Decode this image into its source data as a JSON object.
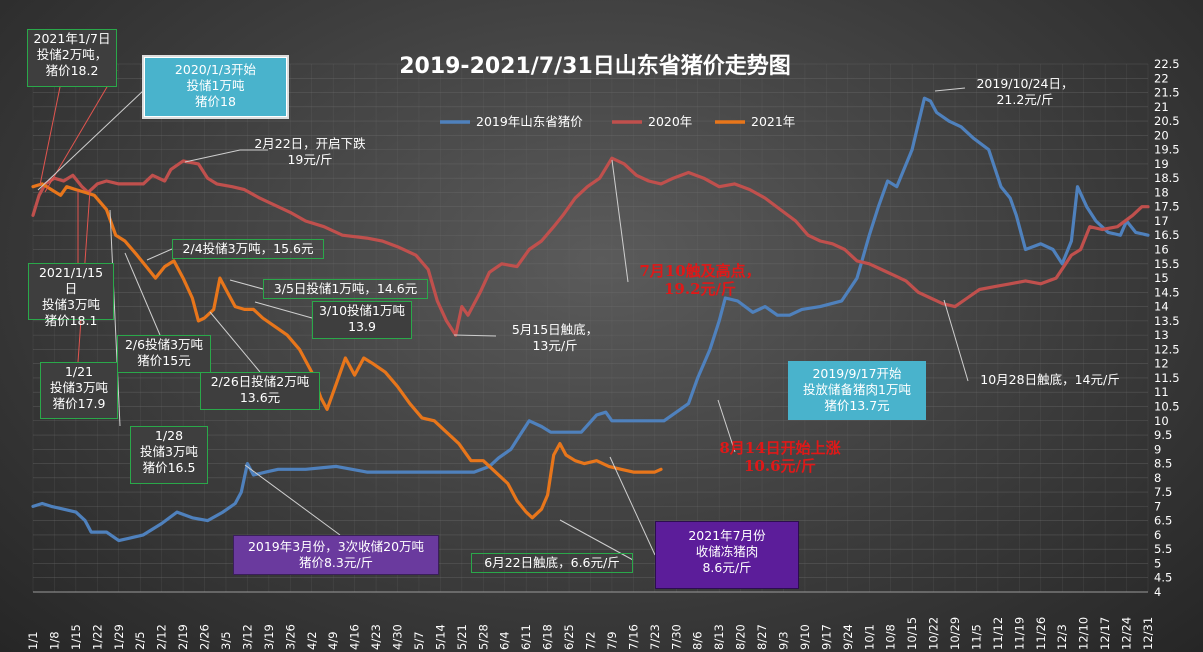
{
  "chart_data": {
    "type": "line",
    "title": "2019-2021/7/31日山东省猪价走势图",
    "ylim": [
      4,
      22.5
    ],
    "ytick_step": 0.5,
    "grid": true,
    "legend_position": "top",
    "x_ticks": [
      "1/1",
      "1/8",
      "1/15",
      "1/22",
      "1/29",
      "2/5",
      "2/12",
      "2/19",
      "2/26",
      "3/5",
      "3/12",
      "3/19",
      "3/26",
      "4/2",
      "4/9",
      "4/16",
      "4/23",
      "4/30",
      "5/7",
      "5/14",
      "5/21",
      "5/28",
      "6/4",
      "6/11",
      "6/18",
      "6/25",
      "7/2",
      "7/9",
      "7/16",
      "7/23",
      "7/30",
      "8/6",
      "8/13",
      "8/20",
      "8/27",
      "9/3",
      "9/10",
      "9/17",
      "9/24",
      "10/1",
      "10/8",
      "10/15",
      "10/22",
      "10/29",
      "11/5",
      "11/12",
      "11/19",
      "11/26",
      "12/3",
      "12/10",
      "12/17",
      "12/24",
      "12/31"
    ],
    "series": [
      {
        "name": "2019年山东省猪价",
        "color": "#4f81bd",
        "points": [
          [
            1,
            7.0
          ],
          [
            4,
            7.1
          ],
          [
            7,
            7.0
          ],
          [
            11,
            6.9
          ],
          [
            15,
            6.8
          ],
          [
            18,
            6.5
          ],
          [
            20,
            6.1
          ],
          [
            25,
            6.1
          ],
          [
            29,
            5.8
          ],
          [
            33,
            5.9
          ],
          [
            37,
            6.0
          ],
          [
            43,
            6.4
          ],
          [
            48,
            6.8
          ],
          [
            53,
            6.6
          ],
          [
            58,
            6.5
          ],
          [
            63,
            6.8
          ],
          [
            67,
            7.1
          ],
          [
            69,
            7.5
          ],
          [
            71,
            8.5
          ],
          [
            73,
            8.1
          ],
          [
            77,
            8.2
          ],
          [
            81,
            8.3
          ],
          [
            90,
            8.3
          ],
          [
            100,
            8.4
          ],
          [
            110,
            8.2
          ],
          [
            125,
            8.2
          ],
          [
            135,
            8.2
          ],
          [
            145,
            8.2
          ],
          [
            150,
            8.4
          ],
          [
            153,
            8.7
          ],
          [
            157,
            9.0
          ],
          [
            160,
            9.5
          ],
          [
            163,
            10.0
          ],
          [
            167,
            9.8
          ],
          [
            170,
            9.6
          ],
          [
            180,
            9.6
          ],
          [
            185,
            10.2
          ],
          [
            188,
            10.3
          ],
          [
            190,
            10.0
          ],
          [
            200,
            10.0
          ],
          [
            207,
            10.0
          ],
          [
            211,
            10.3
          ],
          [
            215,
            10.6
          ],
          [
            218,
            11.5
          ],
          [
            222,
            12.5
          ],
          [
            225,
            13.5
          ],
          [
            227,
            14.3
          ],
          [
            231,
            14.2
          ],
          [
            236,
            13.8
          ],
          [
            240,
            14.0
          ],
          [
            244,
            13.7
          ],
          [
            248,
            13.7
          ],
          [
            252,
            13.9
          ],
          [
            258,
            14.0
          ],
          [
            265,
            14.2
          ],
          [
            270,
            15.0
          ],
          [
            274,
            16.5
          ],
          [
            277,
            17.5
          ],
          [
            280,
            18.4
          ],
          [
            283,
            18.2
          ],
          [
            288,
            19.5
          ],
          [
            292,
            21.3
          ],
          [
            294,
            21.2
          ],
          [
            296,
            20.8
          ],
          [
            300,
            20.5
          ],
          [
            304,
            20.3
          ],
          [
            308,
            19.9
          ],
          [
            313,
            19.5
          ],
          [
            317,
            18.2
          ],
          [
            320,
            17.8
          ],
          [
            322,
            17.2
          ],
          [
            325,
            16.0
          ],
          [
            330,
            16.2
          ],
          [
            334,
            16.0
          ],
          [
            337,
            15.5
          ],
          [
            340,
            16.3
          ],
          [
            342,
            18.2
          ],
          [
            345,
            17.5
          ],
          [
            348,
            17.0
          ],
          [
            352,
            16.6
          ],
          [
            356,
            16.5
          ],
          [
            358,
            17.0
          ],
          [
            361,
            16.6
          ],
          [
            365,
            16.5
          ]
        ]
      },
      {
        "name": "2020年",
        "color": "#c0504d",
        "points": [
          [
            1,
            17.2
          ],
          [
            3,
            17.9
          ],
          [
            5,
            18.3
          ],
          [
            8,
            18.5
          ],
          [
            11,
            18.4
          ],
          [
            14,
            18.6
          ],
          [
            17,
            18.2
          ],
          [
            19,
            18.0
          ],
          [
            22,
            18.3
          ],
          [
            25,
            18.4
          ],
          [
            29,
            18.3
          ],
          [
            33,
            18.3
          ],
          [
            37,
            18.3
          ],
          [
            40,
            18.6
          ],
          [
            44,
            18.4
          ],
          [
            46,
            18.8
          ],
          [
            50,
            19.1
          ],
          [
            55,
            19.0
          ],
          [
            58,
            18.5
          ],
          [
            61,
            18.3
          ],
          [
            66,
            18.2
          ],
          [
            70,
            18.1
          ],
          [
            75,
            17.8
          ],
          [
            79,
            17.6
          ],
          [
            85,
            17.3
          ],
          [
            90,
            17.0
          ],
          [
            96,
            16.8
          ],
          [
            102,
            16.5
          ],
          [
            110,
            16.4
          ],
          [
            115,
            16.3
          ],
          [
            120,
            16.1
          ],
          [
            126,
            15.8
          ],
          [
            130,
            15.3
          ],
          [
            133,
            14.2
          ],
          [
            136,
            13.5
          ],
          [
            139,
            13.0
          ],
          [
            141,
            14.0
          ],
          [
            143,
            13.7
          ],
          [
            147,
            14.5
          ],
          [
            150,
            15.2
          ],
          [
            154,
            15.5
          ],
          [
            159,
            15.4
          ],
          [
            163,
            16.0
          ],
          [
            167,
            16.3
          ],
          [
            171,
            16.8
          ],
          [
            174,
            17.2
          ],
          [
            178,
            17.8
          ],
          [
            182,
            18.2
          ],
          [
            186,
            18.5
          ],
          [
            190,
            19.2
          ],
          [
            194,
            19.0
          ],
          [
            198,
            18.6
          ],
          [
            202,
            18.4
          ],
          [
            206,
            18.3
          ],
          [
            210,
            18.5
          ],
          [
            215,
            18.7
          ],
          [
            220,
            18.5
          ],
          [
            225,
            18.2
          ],
          [
            230,
            18.3
          ],
          [
            235,
            18.1
          ],
          [
            240,
            17.8
          ],
          [
            245,
            17.4
          ],
          [
            250,
            17.0
          ],
          [
            254,
            16.5
          ],
          [
            258,
            16.3
          ],
          [
            262,
            16.2
          ],
          [
            266,
            16.0
          ],
          [
            270,
            15.6
          ],
          [
            274,
            15.5
          ],
          [
            278,
            15.3
          ],
          [
            282,
            15.1
          ],
          [
            286,
            14.9
          ],
          [
            290,
            14.5
          ],
          [
            294,
            14.3
          ],
          [
            298,
            14.1
          ],
          [
            302,
            14.0
          ],
          [
            306,
            14.3
          ],
          [
            310,
            14.6
          ],
          [
            315,
            14.7
          ],
          [
            320,
            14.8
          ],
          [
            325,
            14.9
          ],
          [
            330,
            14.8
          ],
          [
            335,
            15.0
          ],
          [
            340,
            15.8
          ],
          [
            343,
            16.0
          ],
          [
            346,
            16.8
          ],
          [
            350,
            16.7
          ],
          [
            355,
            16.8
          ],
          [
            360,
            17.2
          ],
          [
            363,
            17.5
          ],
          [
            365,
            17.5
          ]
        ]
      },
      {
        "name": "2021年",
        "color": "#e8761b",
        "points": [
          [
            1,
            18.2
          ],
          [
            4,
            18.3
          ],
          [
            7,
            18.1
          ],
          [
            10,
            17.9
          ],
          [
            12,
            18.2
          ],
          [
            15,
            18.1
          ],
          [
            18,
            18.0
          ],
          [
            21,
            17.9
          ],
          [
            25,
            17.4
          ],
          [
            28,
            16.5
          ],
          [
            31,
            16.3
          ],
          [
            35,
            15.8
          ],
          [
            38,
            15.4
          ],
          [
            41,
            15.0
          ],
          [
            44,
            15.4
          ],
          [
            47,
            15.6
          ],
          [
            50,
            15.0
          ],
          [
            53,
            14.3
          ],
          [
            55,
            13.5
          ],
          [
            57,
            13.6
          ],
          [
            60,
            13.9
          ],
          [
            62,
            15.0
          ],
          [
            65,
            14.4
          ],
          [
            67,
            14.0
          ],
          [
            70,
            13.9
          ],
          [
            73,
            13.9
          ],
          [
            76,
            13.6
          ],
          [
            80,
            13.3
          ],
          [
            84,
            13.0
          ],
          [
            88,
            12.5
          ],
          [
            92,
            11.7
          ],
          [
            95,
            10.8
          ],
          [
            97,
            10.4
          ],
          [
            100,
            11.3
          ],
          [
            103,
            12.2
          ],
          [
            106,
            11.6
          ],
          [
            109,
            12.2
          ],
          [
            112,
            12.0
          ],
          [
            116,
            11.7
          ],
          [
            120,
            11.2
          ],
          [
            124,
            10.6
          ],
          [
            128,
            10.1
          ],
          [
            132,
            10.0
          ],
          [
            136,
            9.6
          ],
          [
            140,
            9.2
          ],
          [
            144,
            8.6
          ],
          [
            148,
            8.6
          ],
          [
            152,
            8.2
          ],
          [
            156,
            7.8
          ],
          [
            159,
            7.2
          ],
          [
            162,
            6.8
          ],
          [
            164,
            6.6
          ],
          [
            167,
            6.9
          ],
          [
            169,
            7.4
          ],
          [
            171,
            8.8
          ],
          [
            173,
            9.2
          ],
          [
            175,
            8.8
          ],
          [
            178,
            8.6
          ],
          [
            181,
            8.5
          ],
          [
            185,
            8.6
          ],
          [
            189,
            8.4
          ],
          [
            193,
            8.3
          ],
          [
            197,
            8.2
          ],
          [
            201,
            8.2
          ],
          [
            204,
            8.2
          ],
          [
            206,
            8.3
          ]
        ]
      }
    ]
  },
  "annotations": [
    {
      "id": "ann-2021-0107",
      "text": "2021年1/7日\n投储2万吨，\n猪价18.2"
    },
    {
      "id": "ann-2020-0103",
      "text": "2020/1/3开始\n投储1万吨\n猪价18"
    },
    {
      "id": "ann-0222",
      "text": "2月22日，开启下跌\n19元/斤"
    },
    {
      "id": "ann-0204",
      "text": "2/4投储3万吨，15.6元"
    },
    {
      "id": "ann-2021-0115",
      "text": "2021/1/15日\n投储3万吨\n猪价18.1"
    },
    {
      "id": "ann-0305",
      "text": "3/5日投储1万吨，14.6元"
    },
    {
      "id": "ann-0310",
      "text": "3/10投储1万吨\n13.9"
    },
    {
      "id": "ann-0206",
      "text": "2/6投储3万吨\n猪价15元"
    },
    {
      "id": "ann-0515",
      "text": "5月15日触底，\n13元/斤"
    },
    {
      "id": "ann-0121",
      "text": "1/21\n投储3万吨\n猪价17.9"
    },
    {
      "id": "ann-0226",
      "text": "2/26日投储2万吨\n13.6元"
    },
    {
      "id": "ann-0128",
      "text": "1/28\n投储3万吨\n猪价16.5"
    },
    {
      "id": "ann-0710",
      "text": "7月10触及高点，\n19.2元/斤"
    },
    {
      "id": "ann-0814",
      "text": "8月14日开始上涨\n10.6元/斤"
    },
    {
      "id": "ann-2019-03",
      "text": "2019年3月份，3次收储20万吨\n猪价8.3元/斤"
    },
    {
      "id": "ann-0622",
      "text": "6月22日触底，6.6元/斤"
    },
    {
      "id": "ann-2021-07",
      "text": "2021年7月份\n收储冻猪肉\n8.6元/斤"
    },
    {
      "id": "ann-2019-0917",
      "text": "2019/9/17开始\n投放储备猪肉1万吨\n猪价13.7元"
    },
    {
      "id": "ann-1024",
      "text": "2019/10/24日，\n21.2元/斤"
    },
    {
      "id": "ann-1028",
      "text": "10月28日触底，14元/斤"
    }
  ]
}
